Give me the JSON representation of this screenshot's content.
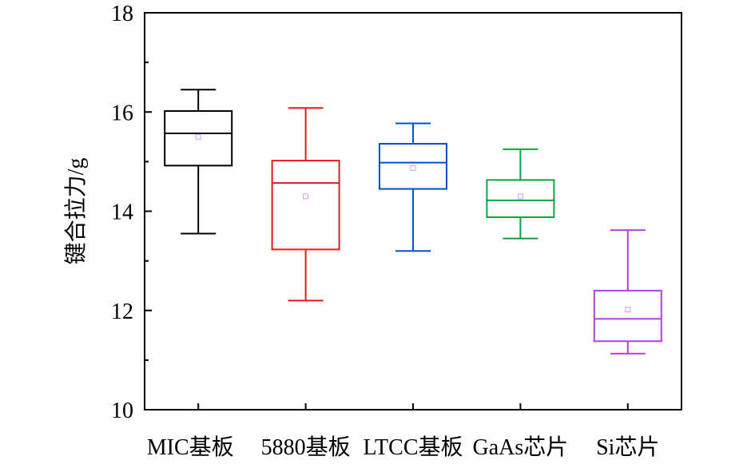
{
  "chart_data": {
    "type": "box",
    "ylabel": "键合拉力/g",
    "xlabel": "",
    "ylim": [
      10,
      18
    ],
    "y_ticks": [
      10,
      12,
      14,
      16,
      18
    ],
    "categories": [
      "MIC基板",
      "5880基板",
      "LTCC基板",
      "GaAs芯片",
      "Si芯片"
    ],
    "series": [
      {
        "category": "MIC基板",
        "color": "#000000",
        "whisker_low": 13.55,
        "q1": 14.92,
        "median": 15.57,
        "q3": 16.02,
        "whisker_high": 16.45,
        "mean": 15.5
      },
      {
        "category": "5880基板",
        "color": "#e8191c",
        "whisker_low": 12.2,
        "q1": 13.23,
        "median": 14.57,
        "q3": 15.02,
        "whisker_high": 16.08,
        "mean": 14.3
      },
      {
        "category": "LTCC基板",
        "color": "#0050c8",
        "whisker_low": 13.2,
        "q1": 14.45,
        "median": 14.98,
        "q3": 15.36,
        "whisker_high": 15.77,
        "mean": 14.87
      },
      {
        "category": "GaAs芯片",
        "color": "#12a040",
        "whisker_low": 13.45,
        "q1": 13.88,
        "median": 14.22,
        "q3": 14.63,
        "whisker_high": 15.25,
        "mean": 14.3
      },
      {
        "category": "Si芯片",
        "color": "#b040e0",
        "whisker_low": 11.13,
        "q1": 11.38,
        "median": 11.83,
        "q3": 12.4,
        "whisker_high": 13.62,
        "mean": 12.02
      }
    ],
    "grid": false,
    "legend": "none"
  }
}
